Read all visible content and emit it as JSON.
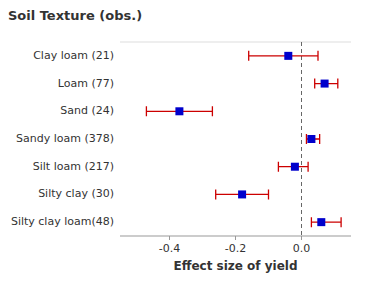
{
  "chart_data": {
    "type": "errorbar",
    "orientation": "horizontal",
    "title": "Soil Texture (obs.)",
    "xlabel": "Effect size of yield",
    "categories": [
      "Clay loam (21)",
      "Loam (77)",
      "Sand (24)",
      "Sandy loam (378)",
      "Silt loam (217)",
      "Silty clay (30)",
      "Silty clay loam(48)"
    ],
    "values": [
      -0.04,
      0.07,
      -0.37,
      0.03,
      -0.02,
      -0.18,
      0.06
    ],
    "err_low": [
      0.12,
      0.03,
      0.1,
      0.015,
      0.05,
      0.08,
      0.03
    ],
    "err_high": [
      0.09,
      0.04,
      0.1,
      0.025,
      0.04,
      0.08,
      0.06
    ],
    "color": "#0000cc",
    "error_color": "#cc0000",
    "marker": "square",
    "xlim": [
      -0.55,
      0.15
    ],
    "xticks": [
      -0.4,
      -0.2,
      {
        "value": 0.0,
        "label": "0.0"
      }
    ],
    "reference_line": 0.0,
    "grid": false
  }
}
